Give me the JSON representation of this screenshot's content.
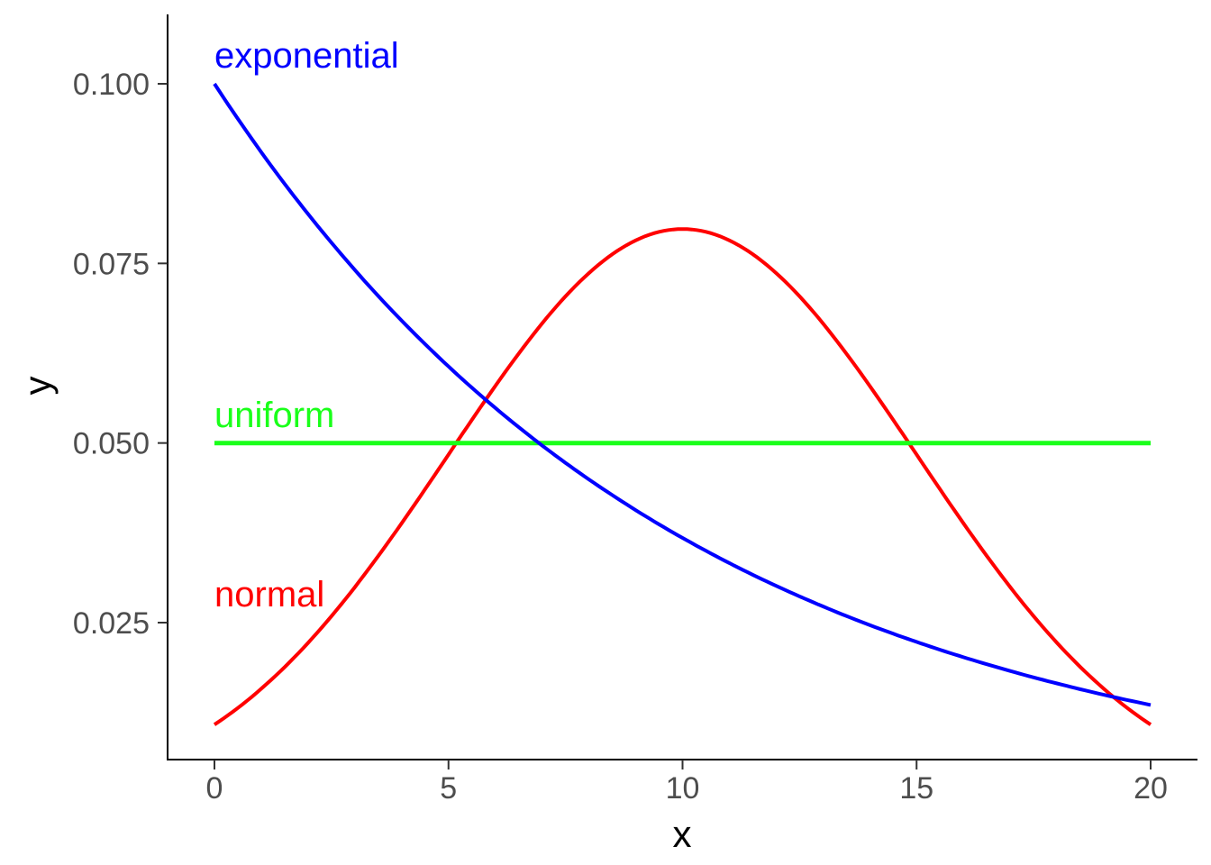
{
  "chart_data": {
    "type": "line",
    "xlabel": "x",
    "ylabel": "y",
    "xlim": [
      0,
      20
    ],
    "ylim": [
      0.0,
      0.11
    ],
    "x_ticks": [
      0,
      5,
      10,
      15,
      20
    ],
    "x_tick_labels": [
      "0",
      "5",
      "10",
      "15",
      "20"
    ],
    "y_ticks": [
      0.025,
      0.05,
      0.075,
      0.1
    ],
    "y_tick_labels": [
      "0.025",
      "0.050",
      "0.075",
      "0.100"
    ],
    "grid": false,
    "legend": "none",
    "series": [
      {
        "name": "exponential",
        "color": "#0000ff",
        "x": [
          0,
          1,
          2,
          3,
          4,
          5,
          6,
          7,
          8,
          9,
          10,
          11,
          12,
          13,
          14,
          15,
          16,
          17,
          18,
          19,
          20
        ],
        "values": [
          0.1,
          0.0905,
          0.0819,
          0.0741,
          0.067,
          0.0607,
          0.0549,
          0.0497,
          0.0449,
          0.0407,
          0.0368,
          0.0333,
          0.0301,
          0.0273,
          0.0247,
          0.0223,
          0.0202,
          0.0183,
          0.0165,
          0.015,
          0.0135
        ]
      },
      {
        "name": "uniform",
        "color": "#1aff1a",
        "x": [
          0,
          20
        ],
        "values": [
          0.05,
          0.05
        ]
      },
      {
        "name": "normal",
        "color": "#ff0000",
        "x": [
          0,
          1,
          2,
          3,
          4,
          5,
          6,
          7,
          8,
          9,
          10,
          11,
          12,
          13,
          14,
          15,
          16,
          17,
          18,
          19,
          20
        ],
        "values": [
          0.0108,
          0.0155,
          0.0218,
          0.0296,
          0.0388,
          0.0484,
          0.0579,
          0.0666,
          0.0737,
          0.0782,
          0.0798,
          0.0782,
          0.0737,
          0.0666,
          0.0579,
          0.0484,
          0.0388,
          0.0296,
          0.0218,
          0.0155,
          0.0108
        ]
      }
    ],
    "annotations": [
      {
        "text": "exponential",
        "color": "#0000ff",
        "x": 0,
        "y": 0.104
      },
      {
        "text": "uniform",
        "color": "#1aff1a",
        "x": 0,
        "y": 0.054
      },
      {
        "text": "normal",
        "color": "#ff0000",
        "x": 0,
        "y": 0.029
      }
    ]
  }
}
